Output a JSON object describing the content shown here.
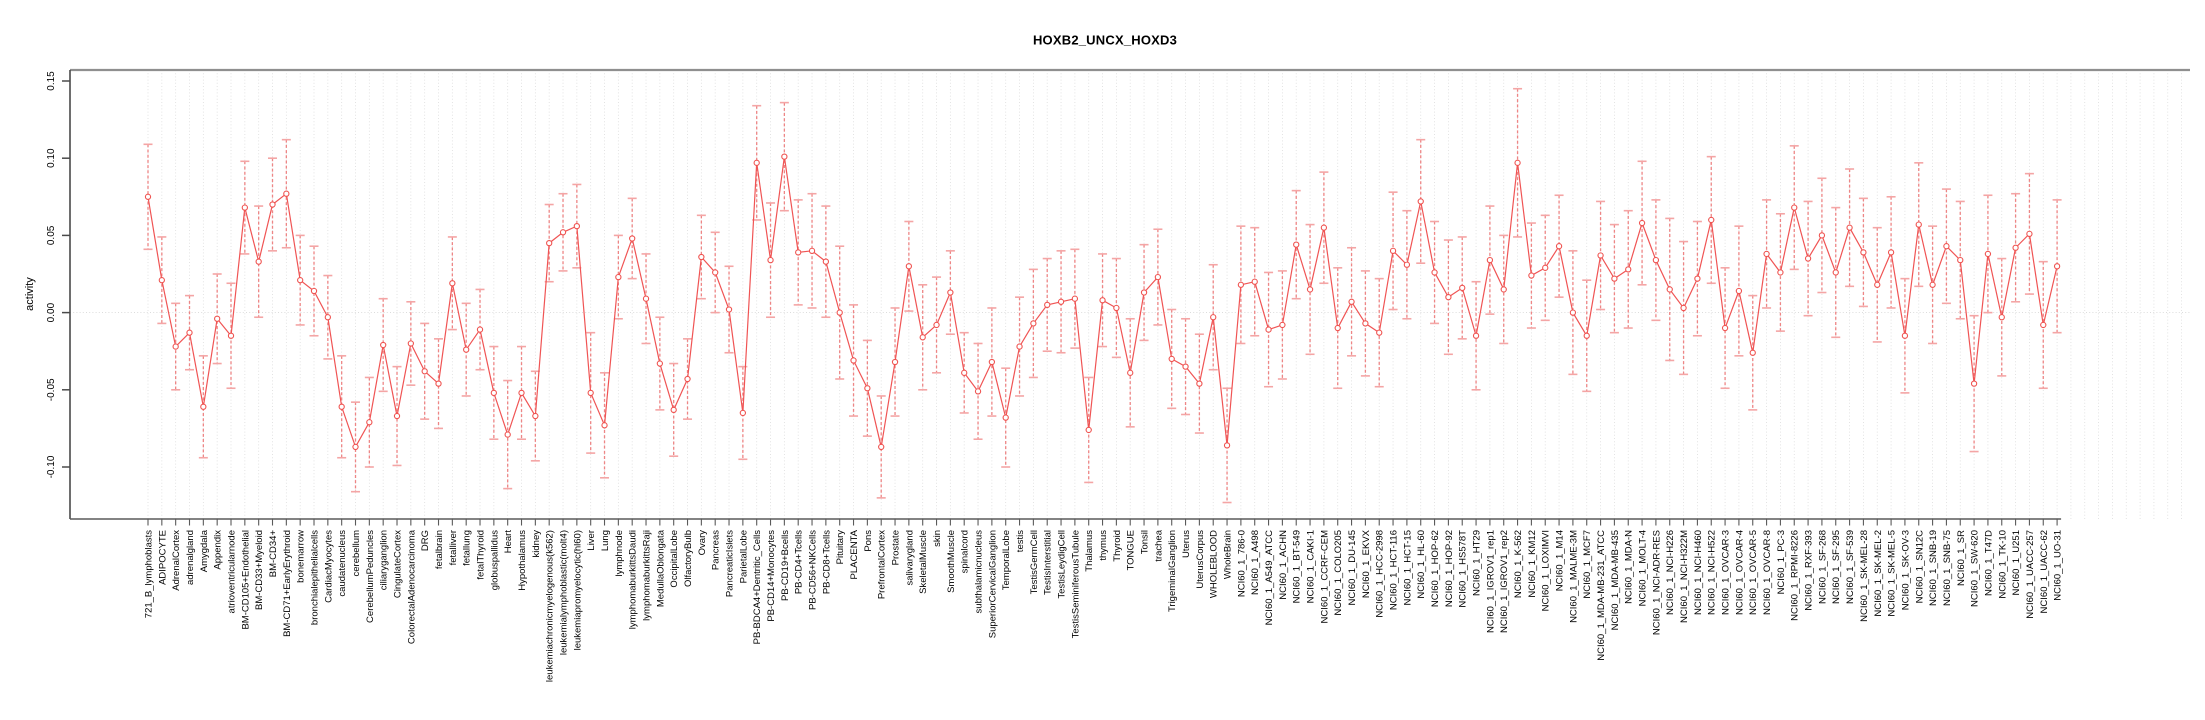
{
  "chart_data": {
    "type": "line",
    "title": "HOXB2_UNCX_HOXD3",
    "ylabel": "activity",
    "xlabel": "",
    "ylim": [
      -0.131,
      0.16
    ],
    "ytick_labels": [
      "-0.10",
      "-0.05",
      "0.00",
      "0.05",
      "0.10",
      "0.15"
    ],
    "yticks": [
      -0.1,
      -0.05,
      0.0,
      0.05,
      0.1,
      0.15
    ],
    "grid": "vertical dotted line per category, dotted horizontal line at y=0",
    "legend_position": "none",
    "marker": "open-circle",
    "error_bars": true,
    "colors": {
      "line": "#f05454",
      "point_stroke": "#ef5350",
      "point_fill": "#ffffff",
      "error_stem": "#ee8585",
      "error_cap": "#f4a5a5",
      "grid": "#dcdcdc",
      "zero_line": "#d8d8d8",
      "box_top": "#8f8f8f",
      "axis": "#4a4a4a",
      "text": "#000000"
    },
    "categories": [
      "721_B_lymphoblasts",
      "ADIPOCYTE",
      "AdrenalCortex",
      "adrenalgland",
      "Amygdala",
      "Appendix",
      "atrioventricularnode",
      "BM-CD105+Endothelial",
      "BM-CD33+Myeloid",
      "BM-CD34+",
      "BM-CD71+EarlyErythroid",
      "bonemarrow",
      "bronchialepithelialcells",
      "CardiacMyocytes",
      "caudatenucleus",
      "cerebellum",
      "CerebellumPeduncles",
      "ciliaryganglion",
      "CingulateCortex",
      "ColorectalAdenocarcinoma",
      "DRG",
      "fetalbrain",
      "fetalliver",
      "fetallung",
      "fetalThyroid",
      "globuspallidus",
      "Heart",
      "Hypothalamus",
      "kidney",
      "leukemiachronicmyelogenous(k562)",
      "leukemialymphoblastic(molt4)",
      "leukemiapromyelocytic(hl60)",
      "Liver",
      "Lung",
      "lymphnode",
      "lymphomaburkittsDaudi",
      "lymphomaburkittsRaji",
      "MedullaOblongata",
      "OccipitalLobe",
      "OlfactoryBulb",
      "Ovary",
      "Pancreas",
      "PancreaticIslets",
      "ParietalLobe",
      "PB-BDCA4+Dentritic_Cells",
      "PB-CD14+Monocytes",
      "PB-CD19+Bcells",
      "PB-CD4+Tcells",
      "PB-CD56+NKCells",
      "PB-CD8+Tcells",
      "Pituitary",
      "PLACENTA",
      "Pons",
      "PrefrontalCortex",
      "Prostate",
      "salivarygland",
      "SkeletalMuscle",
      "skin",
      "SmoothMuscle",
      "spinalcord",
      "subthalamicnucleus",
      "SuperiorCervicalGanglion",
      "TemporalLobe",
      "testis",
      "TestisGermCell",
      "TestisInterstitial",
      "TestisLeydigCell",
      "TestisSeminiferousTubule",
      "Thalamus",
      "thymus",
      "Thyroid",
      "TONGUE",
      "Tonsil",
      "trachea",
      "TrigeminalGanglion",
      "Uterus",
      "UterusCorpus",
      "WHOLEBLOOD",
      "WholeBrain",
      "NCI60_1_786-0",
      "NCI60_1_A498",
      "NCI60_1_A549_ATCC",
      "NCI60_1_ACHN",
      "NCI60_1_BT-549",
      "NCI60_1_CAKI-1",
      "NCI60_1_CCRF-CEM",
      "NCI60_1_COLO205",
      "NCI60_1_DU-145",
      "NCI60_1_EKVX",
      "NCI60_1_HCC-2998",
      "NCI60_1_HCT-116",
      "NCI60_1_HCT-15",
      "NCI60_1_HL-60",
      "NCI60_1_HOP-62",
      "NCI60_1_HOP-92",
      "NCI60_1_HS578T",
      "NCI60_1_HT29",
      "NCI60_1_IGROV1_rep1",
      "NCI60_1_IGROV1_rep2",
      "NCI60_1_K-562",
      "NCI60_1_KM12",
      "NCI60_1_LOXIMVI",
      "NCI60_1_M14",
      "NCI60_1_MALME-3M",
      "NCI60_1_MCF7",
      "NCI60_1_MDA-MB-231_ATCC",
      "NCI60_1_MDA-MB-435",
      "NCI60_1_MDA-N",
      "NCI60_1_MOLT-4",
      "NCI60_1_NCI-ADR-RES",
      "NCI60_1_NCI-H226",
      "NCI60_1_NCI-H322M",
      "NCI60_1_NCI-H460",
      "NCI60_1_NCI-H522",
      "NCI60_1_OVCAR-3",
      "NCI60_1_OVCAR-4",
      "NCI60_1_OVCAR-5",
      "NCI60_1_OVCAR-8",
      "NCI60_1_PC-3",
      "NCI60_1_RPMI-8226",
      "NCI60_1_RXF-393",
      "NCI60_1_SF-268",
      "NCI60_1_SF-295",
      "NCI60_1_SF-539",
      "NCI60_1_SK-MEL-28",
      "NCI60_1_SK-MEL-2",
      "NCI60_1_SK-MEL-5",
      "NCI60_1_SK-OV-3",
      "NCI60_1_SN12C",
      "NCI60_1_SNB-19",
      "NCI60_1_SNB-75",
      "NCI60_1_SR",
      "NCI60_1_SW-620",
      "NCI60_1_T47D",
      "NCI60_1_TK-10",
      "NCI60_1_U251",
      "NCI60_1_UACC-257",
      "NCI60_1_UACC-62",
      "NCI60_1_UO-31"
    ],
    "values": [
      0.075,
      0.021,
      -0.022,
      -0.013,
      -0.061,
      -0.004,
      -0.015,
      0.068,
      0.033,
      0.07,
      0.077,
      0.021,
      0.014,
      -0.003,
      -0.061,
      -0.087,
      -0.071,
      -0.021,
      -0.067,
      -0.02,
      -0.038,
      -0.046,
      0.019,
      -0.024,
      -0.011,
      -0.052,
      -0.079,
      -0.052,
      -0.067,
      0.045,
      0.052,
      0.056,
      -0.052,
      -0.073,
      0.023,
      0.048,
      0.009,
      -0.033,
      -0.063,
      -0.043,
      0.036,
      0.026,
      0.002,
      -0.065,
      0.097,
      0.034,
      0.101,
      0.039,
      0.04,
      0.033,
      0.0,
      -0.031,
      -0.049,
      -0.087,
      -0.032,
      0.03,
      -0.016,
      -0.008,
      0.013,
      -0.039,
      -0.051,
      -0.032,
      -0.068,
      -0.022,
      -0.007,
      0.005,
      0.007,
      0.009,
      -0.076,
      0.008,
      0.003,
      -0.039,
      0.013,
      0.023,
      -0.03,
      -0.035,
      -0.046,
      -0.003,
      -0.086,
      0.018,
      0.02,
      -0.011,
      -0.008,
      0.044,
      0.015,
      0.055,
      -0.01,
      0.007,
      -0.007,
      -0.013,
      0.04,
      0.031,
      0.072,
      0.026,
      0.01,
      0.016,
      -0.015,
      0.034,
      0.015,
      0.097,
      0.024,
      0.029,
      0.043,
      0.0,
      -0.015,
      0.037,
      0.022,
      0.028,
      0.058,
      0.034,
      0.015,
      0.003,
      0.022,
      0.06,
      -0.01,
      0.014,
      -0.026,
      0.038,
      0.026,
      0.068,
      0.035,
      0.05,
      0.026,
      0.055,
      0.039,
      0.018,
      0.039,
      -0.015,
      0.057,
      0.018,
      0.043,
      0.034,
      -0.046,
      0.038,
      -0.003,
      0.042,
      0.051,
      -0.008,
      0.03
    ],
    "errors": [
      0.034,
      0.028,
      0.028,
      0.024,
      0.033,
      0.029,
      0.034,
      0.03,
      0.036,
      0.03,
      0.035,
      0.029,
      0.029,
      0.027,
      0.033,
      0.029,
      0.029,
      0.03,
      0.032,
      0.027,
      0.031,
      0.029,
      0.03,
      0.03,
      0.026,
      0.03,
      0.035,
      0.03,
      0.029,
      0.025,
      0.025,
      0.027,
      0.039,
      0.034,
      0.027,
      0.026,
      0.029,
      0.03,
      0.03,
      0.026,
      0.027,
      0.026,
      0.028,
      0.03,
      0.037,
      0.037,
      0.035,
      0.034,
      0.037,
      0.036,
      0.043,
      0.036,
      0.031,
      0.033,
      0.035,
      0.029,
      0.034,
      0.031,
      0.027,
      0.026,
      0.031,
      0.035,
      0.032,
      0.032,
      0.035,
      0.03,
      0.033,
      0.032,
      0.034,
      0.03,
      0.032,
      0.035,
      0.031,
      0.031,
      0.032,
      0.031,
      0.032,
      0.034,
      0.037,
      0.038,
      0.035,
      0.037,
      0.035,
      0.035,
      0.042,
      0.036,
      0.039,
      0.035,
      0.034,
      0.035,
      0.038,
      0.035,
      0.04,
      0.033,
      0.037,
      0.033,
      0.035,
      0.035,
      0.035,
      0.048,
      0.034,
      0.034,
      0.033,
      0.04,
      0.036,
      0.035,
      0.035,
      0.038,
      0.04,
      0.039,
      0.046,
      0.043,
      0.037,
      0.041,
      0.039,
      0.042,
      0.037,
      0.035,
      0.038,
      0.04,
      0.037,
      0.037,
      0.042,
      0.038,
      0.035,
      0.037,
      0.036,
      0.037,
      0.04,
      0.038,
      0.037,
      0.038,
      0.044,
      0.038,
      0.038,
      0.035,
      0.039,
      0.041,
      0.043
    ]
  }
}
